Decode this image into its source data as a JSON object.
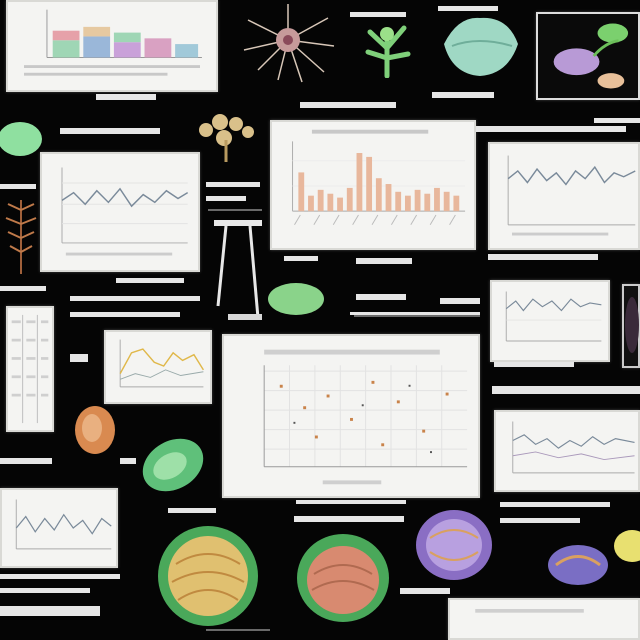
{
  "labels": [],
  "colors": {
    "background": "#050505",
    "panel": "#f4f4f2",
    "bar": "#e8b79c",
    "line": "#7a8a9a",
    "leaf_green": "#6fcf7a",
    "cell_purple": "#8a6ec4",
    "cell_orange": "#d98a50"
  },
  "icons": [
    "root-specimen-icon",
    "moss-specimen-icon",
    "leaf-specimen-icon",
    "flower-photo-icon",
    "coral-specimen-icon",
    "fern-specimen-icon",
    "green-seed-icon",
    "orange-seed-icon",
    "sliced-fruit-icon",
    "purple-cell-icon",
    "microscope-stand-icon"
  ]
}
